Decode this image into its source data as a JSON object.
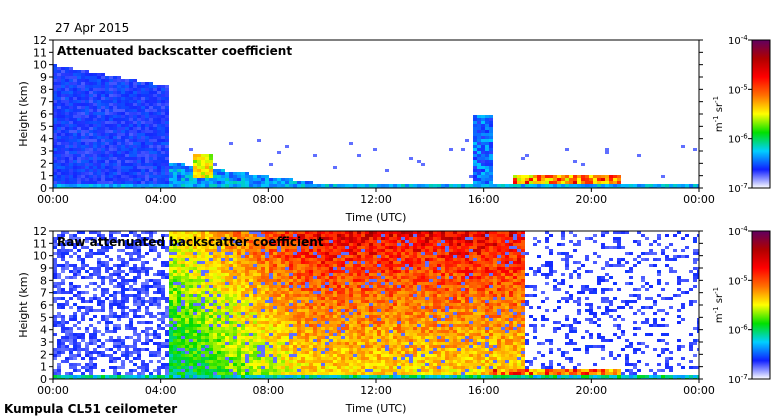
{
  "date": "27 Apr 2015",
  "footer": "Kumpula CL51 ceilometer",
  "chart_data": [
    {
      "type": "heatmap",
      "title": "Attenuated backscatter coefficient",
      "xlabel": "Time (UTC)",
      "ylabel": "Height (km)",
      "xlim": [
        "00:00",
        "24:00"
      ],
      "x_ticks": [
        "00:00",
        "04:00",
        "08:00",
        "12:00",
        "16:00",
        "20:00",
        "00:00"
      ],
      "ylim": [
        0,
        12
      ],
      "y_ticks": [
        "0",
        "1",
        "2",
        "3",
        "4",
        "5",
        "6",
        "7",
        "8",
        "9",
        "10",
        "11",
        "12"
      ],
      "colorbar": {
        "scale": "log",
        "range": [
          1e-07,
          0.0001
        ],
        "ticks": [
          {
            "value": 0.0001,
            "label": "10",
            "exp": "-4"
          },
          {
            "value": 1e-05,
            "label": "10",
            "exp": "-5"
          },
          {
            "value": 1e-06,
            "label": "10",
            "exp": "-6"
          },
          {
            "value": 1e-07,
            "label": "10",
            "exp": "-7"
          }
        ],
        "unit": "m",
        "unit_exp1": "-1",
        "unit_mid": " sr",
        "unit_exp2": "-1",
        "colors": [
          "#ffffff",
          "#1020ff",
          "#00d0ff",
          "#00e000",
          "#ffff00",
          "#ff7000",
          "#ff0000",
          "#b00000",
          "#600060"
        ]
      }
    },
    {
      "type": "heatmap",
      "title": "Raw attenuated backscatter coefficient",
      "xlabel": "Time (UTC)",
      "ylabel": "Height (km)",
      "xlim": [
        "00:00",
        "24:00"
      ],
      "x_ticks": [
        "00:00",
        "04:00",
        "08:00",
        "12:00",
        "16:00",
        "20:00",
        "00:00"
      ],
      "ylim": [
        0,
        12
      ],
      "y_ticks": [
        "0",
        "1",
        "2",
        "3",
        "4",
        "5",
        "6",
        "7",
        "8",
        "9",
        "10",
        "11",
        "12"
      ],
      "colorbar": {
        "scale": "log",
        "range": [
          1e-07,
          0.0001
        ],
        "ticks": [
          {
            "value": 0.0001,
            "label": "10",
            "exp": "-4"
          },
          {
            "value": 1e-05,
            "label": "10",
            "exp": "-5"
          },
          {
            "value": 1e-06,
            "label": "10",
            "exp": "-6"
          },
          {
            "value": 1e-07,
            "label": "10",
            "exp": "-7"
          }
        ],
        "unit": "m",
        "unit_exp1": "-1",
        "unit_mid": " sr",
        "unit_exp2": "-1",
        "colors": [
          "#ffffff",
          "#1020ff",
          "#00d0ff",
          "#00e000",
          "#ffff00",
          "#ff7000",
          "#ff0000",
          "#b00000",
          "#600060"
        ]
      }
    }
  ]
}
